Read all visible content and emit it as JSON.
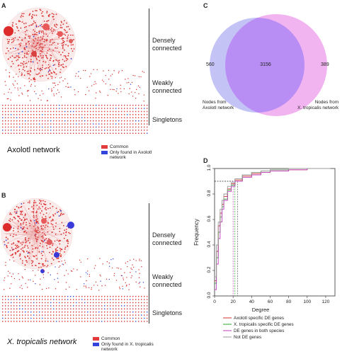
{
  "panel_a": {
    "letter": "A",
    "categories": [
      "Densely connected",
      "Weakly connected",
      "Singletons"
    ],
    "network_title": "Axolotl network",
    "legend": [
      {
        "label": "Common",
        "color": "#e23b3b"
      },
      {
        "label": "Only found in Axolotl network",
        "color": "#3344dd"
      }
    ]
  },
  "panel_b": {
    "letter": "B",
    "categories": [
      "Densely connected",
      "Weakly connected",
      "Singletons"
    ],
    "network_title": "X. tropicalis network",
    "legend": [
      {
        "label": "Common",
        "color": "#e23b3b"
      },
      {
        "label": "Only found in X. tropicalis network",
        "color": "#3344dd"
      }
    ]
  },
  "panel_c": {
    "letter": "C",
    "left_only": "560",
    "overlap": "3156",
    "right_only": "389",
    "left_label": [
      "Nodes from",
      "Axolotl network"
    ],
    "right_label": [
      "Nodes from",
      "X. tropicalis network"
    ],
    "colors": {
      "left": "#b9b9f4",
      "right": "#f0a6ee",
      "overlap": "#b98ef4"
    }
  },
  "panel_d": {
    "letter": "D",
    "chart_data": {
      "type": "line",
      "xlabel": "Degree",
      "ylabel": "Frequency",
      "xlim": [
        0,
        130
      ],
      "ylim": [
        0,
        1.0
      ],
      "xticks": [
        0,
        20,
        40,
        60,
        80,
        100,
        120
      ],
      "yticks": [
        0,
        0.2,
        0.4,
        0.6,
        0.8,
        1.0
      ],
      "reference_lines": {
        "y": 0.9,
        "x": [
          20,
          22,
          25
        ]
      },
      "series": [
        {
          "name": "Axolotl specific DE genes",
          "color": "#d32f2f",
          "x": [
            0,
            2,
            4,
            6,
            8,
            10,
            14,
            18,
            22,
            30,
            40,
            50,
            60,
            80,
            100,
            125
          ],
          "y": [
            0.12,
            0.35,
            0.55,
            0.65,
            0.72,
            0.78,
            0.84,
            0.88,
            0.91,
            0.94,
            0.96,
            0.97,
            0.98,
            0.99,
            1.0,
            1.0
          ]
        },
        {
          "name": "X. tropicalis specific DE genes",
          "color": "#2eaa2e",
          "x": [
            0,
            2,
            4,
            6,
            8,
            10,
            14,
            18,
            22,
            30,
            40,
            50,
            60,
            80,
            100,
            125
          ],
          "y": [
            0.1,
            0.3,
            0.5,
            0.62,
            0.7,
            0.76,
            0.83,
            0.87,
            0.9,
            0.95,
            0.97,
            0.98,
            0.99,
            1.0,
            1.0,
            1.0
          ]
        },
        {
          "name": "DE genes in both species",
          "color": "#c040c0",
          "x": [
            0,
            2,
            4,
            6,
            8,
            10,
            14,
            18,
            22,
            30,
            40,
            50,
            60,
            80,
            100,
            125
          ],
          "y": [
            0.05,
            0.25,
            0.45,
            0.58,
            0.68,
            0.75,
            0.82,
            0.86,
            0.9,
            0.93,
            0.95,
            0.97,
            0.98,
            0.99,
            1.0,
            1.0
          ]
        },
        {
          "name": "Not DE genes",
          "color": "#999999",
          "x": [
            0,
            2,
            4,
            6,
            8,
            10,
            14,
            18,
            22,
            30,
            40,
            50,
            60,
            80,
            100,
            125
          ],
          "y": [
            0.15,
            0.4,
            0.58,
            0.68,
            0.75,
            0.8,
            0.86,
            0.89,
            0.92,
            0.95,
            0.97,
            0.98,
            0.99,
            1.0,
            1.0,
            1.0
          ]
        }
      ]
    }
  }
}
